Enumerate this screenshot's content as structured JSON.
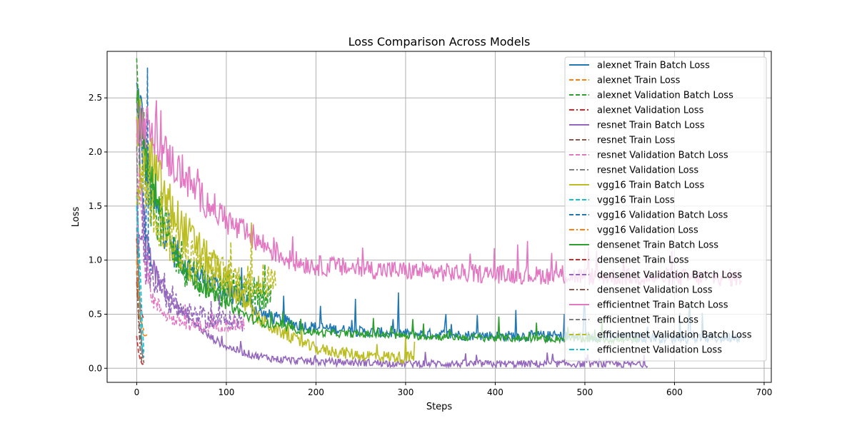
{
  "chart_data": {
    "type": "line",
    "title": "Loss Comparison Across Models",
    "xlabel": "Steps",
    "ylabel": "Loss",
    "xlim": [
      -33,
      708
    ],
    "ylim": [
      -0.13,
      2.93
    ],
    "xticks": [
      0,
      100,
      200,
      300,
      400,
      500,
      600,
      700
    ],
    "yticks": [
      0.0,
      0.5,
      1.0,
      1.5,
      2.0,
      2.5
    ],
    "xtick_labels": [
      "0",
      "100",
      "200",
      "300",
      "400",
      "500",
      "600",
      "700"
    ],
    "ytick_labels": [
      "0.0",
      "0.5",
      "1.0",
      "1.5",
      "2.0",
      "2.5"
    ],
    "grid": true,
    "legend_position": "top-right",
    "series": [
      {
        "name": "alexnet Train Batch Loss",
        "color": "#1f77b4",
        "dash": "solid",
        "points": [
          [
            0,
            2.53
          ],
          [
            5,
            2.35
          ],
          [
            10,
            1.9
          ],
          [
            20,
            1.5
          ],
          [
            30,
            1.3
          ],
          [
            40,
            1.1
          ],
          [
            60,
            0.9
          ],
          [
            80,
            0.8
          ],
          [
            100,
            0.7
          ],
          [
            120,
            0.65
          ],
          [
            140,
            0.5
          ],
          [
            160,
            0.45
          ],
          [
            180,
            0.4
          ],
          [
            200,
            0.38
          ],
          [
            250,
            0.34
          ],
          [
            300,
            0.32
          ],
          [
            350,
            0.31
          ],
          [
            400,
            0.3
          ],
          [
            450,
            0.3
          ],
          [
            500,
            0.29
          ],
          [
            550,
            0.29
          ],
          [
            600,
            0.28
          ],
          [
            650,
            0.28
          ],
          [
            675,
            0.3
          ]
        ],
        "noise": 0.14,
        "spike": 0.35
      },
      {
        "name": "alexnet Train Loss",
        "color": "#ff7f0e",
        "dash": "dashed",
        "points": [
          [
            0,
            1.2
          ],
          [
            2,
            0.7
          ],
          [
            4,
            0.5
          ],
          [
            6,
            0.4
          ],
          [
            8,
            0.35
          ]
        ],
        "noise": 0,
        "spike": 0
      },
      {
        "name": "alexnet Validation Batch Loss",
        "color": "#2ca02c",
        "dash": "dashed",
        "points": [
          [
            0,
            2.45
          ],
          [
            10,
            1.9
          ],
          [
            20,
            1.5
          ],
          [
            40,
            1.1
          ],
          [
            60,
            0.9
          ],
          [
            80,
            0.8
          ],
          [
            100,
            0.75
          ],
          [
            120,
            0.7
          ],
          [
            150,
            0.7
          ]
        ],
        "noise": 0.22,
        "spike": 0.35
      },
      {
        "name": "alexnet Validation Loss",
        "color": "#d62728",
        "dash": "dashdot",
        "points": [
          [
            0,
            1.2
          ],
          [
            2,
            0.8
          ],
          [
            4,
            0.6
          ],
          [
            6,
            0.5
          ],
          [
            8,
            0.45
          ]
        ],
        "noise": 0,
        "spike": 0
      },
      {
        "name": "resnet Train Batch Loss",
        "color": "#9467bd",
        "dash": "solid",
        "points": [
          [
            0,
            2.3
          ],
          [
            10,
            1.2
          ],
          [
            20,
            0.9
          ],
          [
            40,
            0.6
          ],
          [
            60,
            0.45
          ],
          [
            80,
            0.3
          ],
          [
            100,
            0.2
          ],
          [
            130,
            0.12
          ],
          [
            160,
            0.08
          ],
          [
            200,
            0.06
          ],
          [
            300,
            0.045
          ],
          [
            400,
            0.04
          ],
          [
            500,
            0.04
          ],
          [
            570,
            0.035
          ]
        ],
        "noise": 0.1,
        "spike": 0.1
      },
      {
        "name": "resnet Train Loss",
        "color": "#8c564b",
        "dash": "dashed",
        "points": [
          [
            0,
            0.9
          ],
          [
            2,
            0.5
          ],
          [
            4,
            0.3
          ],
          [
            6,
            0.15
          ],
          [
            8,
            0.05
          ]
        ],
        "noise": 0,
        "spike": 0
      },
      {
        "name": "resnet Validation Batch Loss",
        "color": "#e377c2",
        "dash": "dashed",
        "points": [
          [
            0,
            2.1
          ],
          [
            10,
            0.9
          ],
          [
            20,
            0.6
          ],
          [
            40,
            0.45
          ],
          [
            60,
            0.4
          ],
          [
            80,
            0.38
          ],
          [
            100,
            0.4
          ],
          [
            120,
            0.4
          ]
        ],
        "noise": 0.15,
        "spike": 0.2
      },
      {
        "name": "resnet Validation Loss",
        "color": "#7f7f7f",
        "dash": "dashdot",
        "points": [
          [
            0,
            2.05
          ],
          [
            2,
            1.1
          ],
          [
            4,
            0.5
          ],
          [
            6,
            0.1
          ],
          [
            8,
            0.07
          ]
        ],
        "noise": 0,
        "spike": 0
      },
      {
        "name": "vgg16 Train Batch Loss",
        "color": "#bcbd22",
        "dash": "solid",
        "points": [
          [
            0,
            2.3
          ],
          [
            10,
            2.0
          ],
          [
            20,
            1.8
          ],
          [
            30,
            1.6
          ],
          [
            50,
            1.3
          ],
          [
            70,
            1.1
          ],
          [
            90,
            0.9
          ],
          [
            110,
            0.7
          ],
          [
            130,
            0.5
          ],
          [
            150,
            0.38
          ],
          [
            180,
            0.25
          ],
          [
            200,
            0.18
          ],
          [
            250,
            0.12
          ],
          [
            300,
            0.1
          ],
          [
            310,
            0.1
          ]
        ],
        "noise": 0.16,
        "spike": 0.3
      },
      {
        "name": "vgg16 Train Loss",
        "color": "#17becf",
        "dash": "dashed",
        "points": [
          [
            0,
            1.6
          ],
          [
            2,
            1.2
          ],
          [
            4,
            0.9
          ],
          [
            6,
            0.45
          ],
          [
            8,
            0.15
          ]
        ],
        "noise": 0,
        "spike": 0
      },
      {
        "name": "vgg16 Validation Batch Loss",
        "color": "#1f77b4",
        "dash": "dashed",
        "points": [
          [
            0,
            2.4
          ],
          [
            5,
            2.2
          ],
          [
            10,
            1.0
          ],
          [
            12,
            2.78
          ],
          [
            13,
            1.2
          ],
          [
            16,
            0.9
          ]
        ],
        "noise": 0,
        "spike": 0
      },
      {
        "name": "vgg16 Validation Loss",
        "color": "#ff7f0e",
        "dash": "dashdot",
        "points": [
          [
            0,
            1.0
          ],
          [
            3,
            0.5
          ],
          [
            6,
            0.32
          ],
          [
            9,
            0.3
          ],
          [
            12,
            0.31
          ]
        ],
        "noise": 0,
        "spike": 0
      },
      {
        "name": "densenet Train Batch Loss",
        "color": "#2ca02c",
        "dash": "solid",
        "points": [
          [
            0,
            2.45
          ],
          [
            10,
            2.0
          ],
          [
            20,
            1.6
          ],
          [
            40,
            1.1
          ],
          [
            60,
            0.85
          ],
          [
            80,
            0.7
          ],
          [
            100,
            0.6
          ],
          [
            130,
            0.45
          ],
          [
            160,
            0.38
          ],
          [
            200,
            0.33
          ],
          [
            300,
            0.3
          ],
          [
            400,
            0.28
          ],
          [
            500,
            0.27
          ],
          [
            560,
            0.26
          ]
        ],
        "noise": 0.1,
        "spike": 0.2
      },
      {
        "name": "densenet Train Loss",
        "color": "#d62728",
        "dash": "dashed",
        "points": [
          [
            0,
            0.3
          ],
          [
            2,
            0.15
          ],
          [
            4,
            0.08
          ],
          [
            6,
            0.04
          ],
          [
            8,
            0.03
          ]
        ],
        "noise": 0,
        "spike": 0
      },
      {
        "name": "densenet Validation Batch Loss",
        "color": "#9467bd",
        "dash": "dashed",
        "points": [
          [
            0,
            1.4
          ],
          [
            10,
            1.0
          ],
          [
            20,
            0.8
          ],
          [
            40,
            0.6
          ],
          [
            60,
            0.5
          ],
          [
            80,
            0.45
          ],
          [
            100,
            0.45
          ],
          [
            120,
            0.42
          ]
        ],
        "noise": 0.2,
        "spike": 0.25
      },
      {
        "name": "densenet Validation Loss",
        "color": "#8c564b",
        "dash": "dashdot",
        "points": [
          [
            0,
            0.8
          ],
          [
            2,
            0.45
          ],
          [
            4,
            0.15
          ],
          [
            6,
            0.05
          ],
          [
            8,
            0.03
          ]
        ],
        "noise": 0,
        "spike": 0
      },
      {
        "name": "efficientnet Train Batch Loss",
        "color": "#e377c2",
        "dash": "solid",
        "points": [
          [
            0,
            2.3
          ],
          [
            10,
            2.25
          ],
          [
            20,
            2.1
          ],
          [
            30,
            2.0
          ],
          [
            50,
            1.8
          ],
          [
            70,
            1.6
          ],
          [
            90,
            1.45
          ],
          [
            110,
            1.3
          ],
          [
            140,
            1.15
          ],
          [
            170,
            1.0
          ],
          [
            200,
            0.95
          ],
          [
            250,
            0.92
          ],
          [
            300,
            0.9
          ],
          [
            400,
            0.87
          ],
          [
            500,
            0.85
          ],
          [
            600,
            0.84
          ],
          [
            675,
            0.84
          ]
        ],
        "noise": 0.1,
        "spike": 0.25
      },
      {
        "name": "efficientnet Train Loss",
        "color": "#7f7f7f",
        "dash": "dashed",
        "points": [
          [
            0,
            1.3
          ],
          [
            2,
            0.9
          ],
          [
            4,
            0.5
          ],
          [
            6,
            0.2
          ],
          [
            8,
            0.1
          ]
        ],
        "noise": 0,
        "spike": 0
      },
      {
        "name": "efficientnet Validation Batch Loss",
        "color": "#bcbd22",
        "dash": "dashed",
        "points": [
          [
            0,
            1.8
          ],
          [
            10,
            1.7
          ],
          [
            20,
            1.5
          ],
          [
            40,
            1.2
          ],
          [
            60,
            1.0
          ],
          [
            80,
            0.9
          ],
          [
            100,
            0.85
          ],
          [
            120,
            0.8
          ],
          [
            140,
            0.8
          ],
          [
            155,
            0.8
          ]
        ],
        "noise": 0.22,
        "spike": 0.4
      },
      {
        "name": "efficientnet Validation Loss",
        "color": "#17becf",
        "dash": "dashdot",
        "points": [
          [
            0,
            1.5
          ],
          [
            2,
            1.0
          ],
          [
            4,
            0.5
          ],
          [
            6,
            0.2
          ],
          [
            8,
            0.1
          ]
        ],
        "noise": 0,
        "spike": 0
      }
    ]
  }
}
